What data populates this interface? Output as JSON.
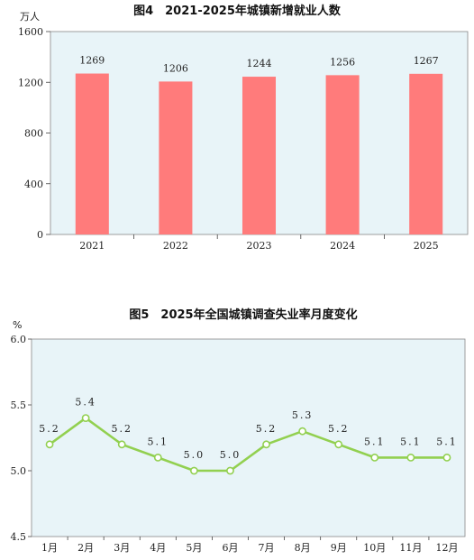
{
  "chart_data": [
    {
      "type": "bar",
      "title": "图4　2021-2025年城镇新增就业人数",
      "ylabel": "万人",
      "categories": [
        "2021",
        "2022",
        "2023",
        "2024",
        "2025"
      ],
      "values": [
        1269,
        1206,
        1244,
        1256,
        1267
      ],
      "data_labels": [
        "1269",
        "1206",
        "1244",
        "1256",
        "1267"
      ],
      "yticks": [
        "0",
        "400",
        "800",
        "1200",
        "1600"
      ],
      "ylim": [
        0,
        1600
      ],
      "bar_color": "#ff7b7b",
      "plot_bg": "#e8f4f8",
      "grid": false
    },
    {
      "type": "line",
      "title": "图5　2025年全国城镇调查失业率月度变化",
      "ylabel": "%",
      "categories": [
        "1月",
        "2月",
        "3月",
        "4月",
        "5月",
        "6月",
        "7月",
        "8月",
        "9月",
        "10月",
        "11月",
        "12月"
      ],
      "values": [
        5.2,
        5.4,
        5.2,
        5.1,
        5.0,
        5.0,
        5.2,
        5.3,
        5.2,
        5.1,
        5.1,
        5.1
      ],
      "data_labels": [
        "5.2",
        "5.4",
        "5.2",
        "5.1",
        "5.0",
        "5.0",
        "5.2",
        "5.3",
        "5.2",
        "5.1",
        "5.1",
        "5.1"
      ],
      "yticks": [
        "4.5",
        "5.0",
        "5.5",
        "6.0"
      ],
      "ylim": [
        4.5,
        6.0
      ],
      "line_color": "#92d050",
      "plot_bg": "#e8f4f8",
      "grid": false
    }
  ]
}
